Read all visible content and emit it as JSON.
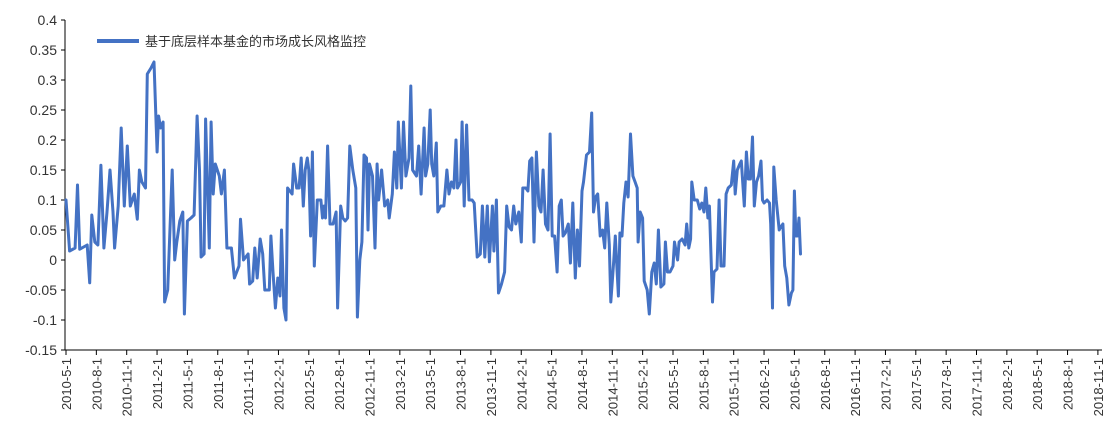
{
  "chart_data": {
    "type": "line",
    "title": "",
    "xlabel": "",
    "ylabel": "",
    "ylim": [
      -0.15,
      0.4
    ],
    "yticks": [
      "0.4",
      "0.35",
      "0.3",
      "0.25",
      "0.2",
      "0.15",
      "0.1",
      "0.05",
      "0",
      "-0.05",
      "-0.1",
      "-0.15"
    ],
    "xticks": [
      "2010-5-1",
      "2010-8-1",
      "2010-11-1",
      "2011-2-1",
      "2011-5-1",
      "2011-8-1",
      "2011-11-1",
      "2012-2-1",
      "2012-5-1",
      "2012-8-1",
      "2012-11-1",
      "2013-2-1",
      "2013-5-1",
      "2013-8-1",
      "2013-11-1",
      "2014-2-1",
      "2014-5-1",
      "2014-8-1",
      "2014-11-1",
      "2015-2-1",
      "2015-5-1",
      "2015-8-1",
      "2015-11-1",
      "2016-2-1",
      "2016-5-1",
      "2016-8-1",
      "2016-11-1",
      "2017-2-1",
      "2017-5-1",
      "2017-8-1",
      "2017-11-1",
      "2018-2-1",
      "2018-5-1",
      "2018-8-1",
      "2018-11-1"
    ],
    "legend_position": "top-left",
    "grid": false,
    "colors": {
      "series": "#4472C4",
      "axis": "#000000"
    },
    "series": [
      {
        "name": "基于底层样本基金的市场成长风格监控",
        "points": [
          [
            0.0,
            0.1
          ],
          [
            0.12,
            0.015
          ],
          [
            0.3,
            0.02
          ],
          [
            0.38,
            0.125
          ],
          [
            0.45,
            0.018
          ],
          [
            0.7,
            0.025
          ],
          [
            0.78,
            -0.038
          ],
          [
            0.85,
            0.075
          ],
          [
            0.95,
            0.03
          ],
          [
            1.05,
            0.025
          ],
          [
            1.15,
            0.158
          ],
          [
            1.25,
            0.02
          ],
          [
            1.35,
            0.08
          ],
          [
            1.45,
            0.15
          ],
          [
            1.55,
            0.08
          ],
          [
            1.6,
            0.02
          ],
          [
            1.72,
            0.09
          ],
          [
            1.82,
            0.22
          ],
          [
            1.92,
            0.09
          ],
          [
            2.02,
            0.19
          ],
          [
            2.12,
            0.09
          ],
          [
            2.25,
            0.11
          ],
          [
            2.35,
            0.068
          ],
          [
            2.42,
            0.15
          ],
          [
            2.5,
            0.13
          ],
          [
            2.62,
            0.12
          ],
          [
            2.68,
            0.31
          ],
          [
            2.8,
            0.32
          ],
          [
            2.9,
            0.33
          ],
          [
            3.0,
            0.18
          ],
          [
            3.05,
            0.24
          ],
          [
            3.12,
            0.22
          ],
          [
            3.2,
            0.23
          ],
          [
            3.25,
            -0.07
          ],
          [
            3.35,
            -0.05
          ],
          [
            3.5,
            0.15
          ],
          [
            3.58,
            0.0
          ],
          [
            3.65,
            0.03
          ],
          [
            3.75,
            0.065
          ],
          [
            3.85,
            0.08
          ],
          [
            3.9,
            -0.09
          ],
          [
            4.0,
            0.065
          ],
          [
            4.12,
            0.07
          ],
          [
            4.22,
            0.075
          ],
          [
            4.32,
            0.24
          ],
          [
            4.4,
            0.15
          ],
          [
            4.45,
            0.005
          ],
          [
            4.55,
            0.01
          ],
          [
            4.6,
            0.235
          ],
          [
            4.72,
            0.02
          ],
          [
            4.78,
            0.23
          ],
          [
            4.85,
            0.11
          ],
          [
            4.92,
            0.16
          ],
          [
            5.05,
            0.14
          ],
          [
            5.12,
            0.11
          ],
          [
            5.22,
            0.15
          ],
          [
            5.3,
            0.02
          ],
          [
            5.45,
            0.02
          ],
          [
            5.55,
            -0.03
          ],
          [
            5.7,
            -0.01
          ],
          [
            5.75,
            0.068
          ],
          [
            5.85,
            0.0
          ],
          [
            6.0,
            0.01
          ],
          [
            6.05,
            -0.04
          ],
          [
            6.15,
            -0.035
          ],
          [
            6.22,
            0.02
          ],
          [
            6.3,
            -0.03
          ],
          [
            6.4,
            0.035
          ],
          [
            6.48,
            0.01
          ],
          [
            6.55,
            -0.05
          ],
          [
            6.7,
            -0.05
          ],
          [
            6.75,
            0.04
          ],
          [
            6.82,
            -0.02
          ],
          [
            6.9,
            -0.08
          ],
          [
            6.98,
            -0.03
          ],
          [
            7.05,
            -0.06
          ],
          [
            7.1,
            0.05
          ],
          [
            7.18,
            -0.08
          ],
          [
            7.25,
            -0.1
          ],
          [
            7.3,
            0.12
          ],
          [
            7.45,
            0.11
          ],
          [
            7.5,
            0.16
          ],
          [
            7.6,
            0.12
          ],
          [
            7.68,
            0.12
          ],
          [
            7.75,
            0.17
          ],
          [
            7.82,
            0.09
          ],
          [
            7.88,
            0.15
          ],
          [
            7.95,
            0.17
          ],
          [
            8.0,
            0.15
          ],
          [
            8.06,
            0.04
          ],
          [
            8.12,
            0.18
          ],
          [
            8.18,
            -0.01
          ],
          [
            8.28,
            0.1
          ],
          [
            8.4,
            0.1
          ],
          [
            8.45,
            0.07
          ],
          [
            8.5,
            0.09
          ],
          [
            8.55,
            0.07
          ],
          [
            8.62,
            0.19
          ],
          [
            8.7,
            0.06
          ],
          [
            8.8,
            0.06
          ],
          [
            8.9,
            0.08
          ],
          [
            8.95,
            -0.08
          ],
          [
            9.05,
            0.09
          ],
          [
            9.12,
            0.07
          ],
          [
            9.2,
            0.065
          ],
          [
            9.28,
            0.07
          ],
          [
            9.35,
            0.19
          ],
          [
            9.45,
            0.15
          ],
          [
            9.55,
            0.12
          ],
          [
            9.6,
            -0.095
          ],
          [
            9.68,
            0.0
          ],
          [
            9.75,
            0.03
          ],
          [
            9.82,
            0.175
          ],
          [
            9.9,
            0.17
          ],
          [
            9.95,
            0.05
          ],
          [
            10.0,
            0.16
          ],
          [
            10.1,
            0.14
          ],
          [
            10.18,
            0.02
          ],
          [
            10.25,
            0.16
          ],
          [
            10.3,
            0.1
          ],
          [
            10.4,
            0.15
          ],
          [
            10.5,
            0.09
          ],
          [
            10.6,
            0.1
          ],
          [
            10.65,
            0.07
          ],
          [
            10.75,
            0.11
          ],
          [
            10.82,
            0.18
          ],
          [
            10.9,
            0.12
          ],
          [
            10.95,
            0.23
          ],
          [
            11.05,
            0.12
          ],
          [
            11.12,
            0.23
          ],
          [
            11.2,
            0.14
          ],
          [
            11.3,
            0.17
          ],
          [
            11.36,
            0.29
          ],
          [
            11.42,
            0.15
          ],
          [
            11.55,
            0.14
          ],
          [
            11.62,
            0.19
          ],
          [
            11.7,
            0.11
          ],
          [
            11.8,
            0.22
          ],
          [
            11.85,
            0.14
          ],
          [
            11.92,
            0.16
          ],
          [
            12.0,
            0.25
          ],
          [
            12.05,
            0.16
          ],
          [
            12.12,
            0.14
          ],
          [
            12.2,
            0.195
          ],
          [
            12.25,
            0.08
          ],
          [
            12.35,
            0.09
          ],
          [
            12.45,
            0.09
          ],
          [
            12.55,
            0.15
          ],
          [
            12.62,
            0.11
          ],
          [
            12.7,
            0.13
          ],
          [
            12.78,
            0.12
          ],
          [
            12.85,
            0.2
          ],
          [
            12.9,
            0.12
          ],
          [
            13.0,
            0.13
          ],
          [
            13.05,
            0.23
          ],
          [
            13.12,
            0.09
          ],
          [
            13.2,
            0.225
          ],
          [
            13.28,
            0.1
          ],
          [
            13.38,
            0.1
          ],
          [
            13.45,
            0.095
          ],
          [
            13.55,
            0.005
          ],
          [
            13.65,
            0.01
          ],
          [
            13.72,
            0.09
          ],
          [
            13.8,
            0.005
          ],
          [
            13.88,
            0.09
          ],
          [
            13.95,
            -0.003
          ],
          [
            14.05,
            0.09
          ],
          [
            14.1,
            0.015
          ],
          [
            14.18,
            0.1
          ],
          [
            14.25,
            -0.055
          ],
          [
            14.35,
            -0.04
          ],
          [
            14.45,
            -0.02
          ],
          [
            14.52,
            0.09
          ],
          [
            14.6,
            0.055
          ],
          [
            14.68,
            0.05
          ],
          [
            14.75,
            0.09
          ],
          [
            14.82,
            0.06
          ],
          [
            14.92,
            0.08
          ],
          [
            15.0,
            0.03
          ],
          [
            15.05,
            0.12
          ],
          [
            15.15,
            0.12
          ],
          [
            15.22,
            0.115
          ],
          [
            15.28,
            0.165
          ],
          [
            15.35,
            0.17
          ],
          [
            15.42,
            0.03
          ],
          [
            15.5,
            0.18
          ],
          [
            15.58,
            0.09
          ],
          [
            15.65,
            0.08
          ],
          [
            15.72,
            0.15
          ],
          [
            15.8,
            0.06
          ],
          [
            15.88,
            0.05
          ],
          [
            15.95,
            0.21
          ],
          [
            16.02,
            0.04
          ],
          [
            16.1,
            0.04
          ],
          [
            16.18,
            -0.02
          ],
          [
            16.25,
            0.09
          ],
          [
            16.32,
            0.1
          ],
          [
            16.38,
            0.04
          ],
          [
            16.45,
            0.045
          ],
          [
            16.55,
            0.06
          ],
          [
            16.62,
            -0.005
          ],
          [
            16.7,
            0.095
          ],
          [
            16.78,
            -0.03
          ],
          [
            16.85,
            0.05
          ],
          [
            16.92,
            -0.01
          ],
          [
            17.0,
            0.115
          ],
          [
            17.05,
            0.13
          ],
          [
            17.15,
            0.175
          ],
          [
            17.25,
            0.18
          ],
          [
            17.32,
            0.245
          ],
          [
            17.38,
            0.08
          ],
          [
            17.45,
            0.105
          ],
          [
            17.52,
            0.11
          ],
          [
            17.6,
            0.04
          ],
          [
            17.68,
            0.05
          ],
          [
            17.75,
            0.02
          ],
          [
            17.82,
            0.095
          ],
          [
            17.9,
            0.025
          ],
          [
            17.95,
            -0.07
          ],
          [
            18.05,
            0.0
          ],
          [
            18.1,
            0.04
          ],
          [
            18.2,
            -0.06
          ],
          [
            18.25,
            0.045
          ],
          [
            18.32,
            0.04
          ],
          [
            18.38,
            0.095
          ],
          [
            18.45,
            0.13
          ],
          [
            18.52,
            0.105
          ],
          [
            18.6,
            0.21
          ],
          [
            18.68,
            0.14
          ],
          [
            18.75,
            0.13
          ],
          [
            18.82,
            0.12
          ],
          [
            18.85,
            0.03
          ],
          [
            18.92,
            0.08
          ],
          [
            19.0,
            0.07
          ],
          [
            19.05,
            -0.035
          ],
          [
            19.15,
            -0.05
          ],
          [
            19.22,
            -0.09
          ],
          [
            19.3,
            -0.02
          ],
          [
            19.38,
            -0.005
          ],
          [
            19.45,
            -0.04
          ],
          [
            19.52,
            0.05
          ],
          [
            19.6,
            -0.045
          ],
          [
            19.7,
            -0.04
          ],
          [
            19.75,
            0.03
          ],
          [
            19.82,
            -0.02
          ],
          [
            19.9,
            -0.02
          ],
          [
            20.0,
            -0.01
          ],
          [
            20.05,
            0.03
          ],
          [
            20.15,
            0.0
          ],
          [
            20.2,
            0.03
          ],
          [
            20.3,
            0.035
          ],
          [
            20.4,
            0.025
          ],
          [
            20.45,
            0.06
          ],
          [
            20.52,
            0.02
          ],
          [
            20.58,
            0.035
          ],
          [
            20.62,
            0.13
          ],
          [
            20.7,
            0.1
          ],
          [
            20.8,
            0.1
          ],
          [
            20.88,
            0.085
          ],
          [
            20.95,
            0.095
          ],
          [
            21.02,
            0.08
          ],
          [
            21.08,
            0.12
          ],
          [
            21.15,
            0.07
          ],
          [
            21.2,
            0.09
          ],
          [
            21.3,
            -0.07
          ],
          [
            21.35,
            -0.02
          ],
          [
            21.45,
            -0.015
          ],
          [
            21.52,
            0.1
          ],
          [
            21.58,
            -0.01
          ],
          [
            21.68,
            -0.01
          ],
          [
            21.75,
            0.11
          ],
          [
            21.82,
            0.12
          ],
          [
            21.92,
            0.125
          ],
          [
            22.0,
            0.165
          ],
          [
            22.05,
            0.11
          ],
          [
            22.12,
            0.15
          ],
          [
            22.2,
            0.16
          ],
          [
            22.25,
            0.165
          ],
          [
            22.35,
            0.09
          ],
          [
            22.42,
            0.18
          ],
          [
            22.48,
            0.135
          ],
          [
            22.55,
            0.135
          ],
          [
            22.62,
            0.205
          ],
          [
            22.68,
            0.09
          ],
          [
            22.75,
            0.13
          ],
          [
            22.82,
            0.14
          ],
          [
            22.9,
            0.165
          ],
          [
            22.95,
            0.1
          ],
          [
            23.0,
            0.095
          ],
          [
            23.1,
            0.1
          ],
          [
            23.18,
            0.095
          ],
          [
            23.22,
            0.06
          ],
          [
            23.28,
            -0.08
          ],
          [
            23.32,
            0.155
          ],
          [
            23.4,
            0.1
          ],
          [
            23.5,
            0.05
          ],
          [
            23.55,
            0.055
          ],
          [
            23.62,
            0.06
          ],
          [
            23.68,
            -0.01
          ],
          [
            23.75,
            -0.03
          ],
          [
            23.82,
            -0.075
          ],
          [
            23.9,
            -0.055
          ],
          [
            23.95,
            -0.05
          ],
          [
            24.0,
            0.115
          ],
          [
            24.05,
            0.04
          ],
          [
            24.1,
            0.04
          ],
          [
            24.15,
            0.07
          ],
          [
            24.2,
            0.01
          ]
        ]
      }
    ]
  }
}
